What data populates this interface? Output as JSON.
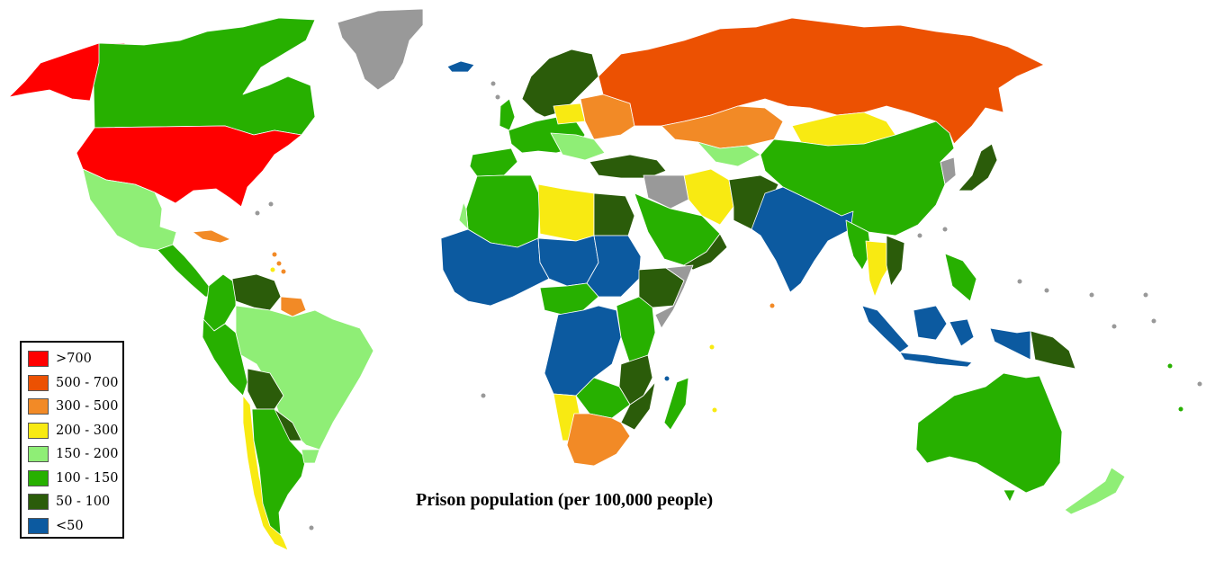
{
  "title": "Prison population (per 100,000 people)",
  "colors": {
    "gt700": "#ff0000",
    "500_700": "#ec5102",
    "300_500": "#f28a26",
    "200_300": "#f8ea12",
    "150_200": "#8fee76",
    "100_150": "#27b000",
    "50_100": "#2b5c0a",
    "lt50": "#0c5aa0",
    "nodata": "#999999"
  },
  "legend": [
    {
      "label": ">700",
      "color": "#ff0000"
    },
    {
      "label": "500 - 700",
      "color": "#ec5102"
    },
    {
      "label": "300 - 500",
      "color": "#f28a26"
    },
    {
      "label": "200 - 300",
      "color": "#f8ea12"
    },
    {
      "label": "150 - 200",
      "color": "#8fee76"
    },
    {
      "label": "100 - 150",
      "color": "#27b000"
    },
    {
      "label": "50 - 100",
      "color": "#2b5c0a"
    },
    {
      "label": "<50",
      "color": "#0c5aa0"
    }
  ]
}
